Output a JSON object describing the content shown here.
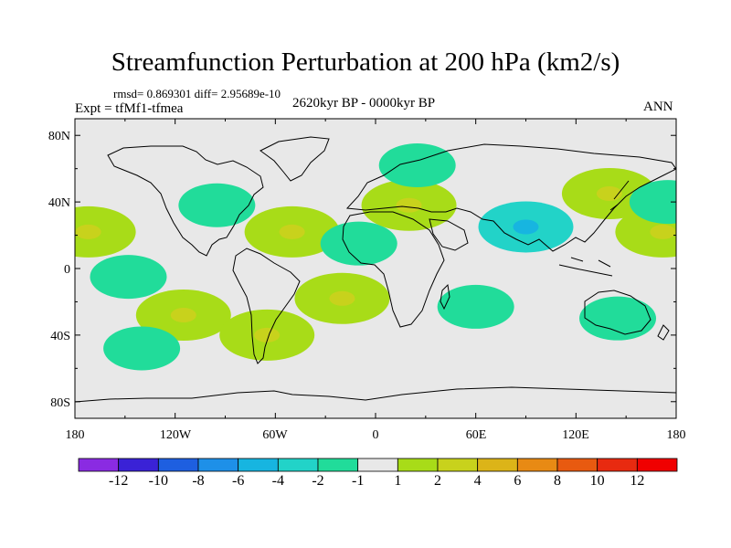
{
  "title": "Streamfunction Perturbation at 200 hPa (km2/s)",
  "stats": "rmsd= 0.869301 diff= 2.95689e-10",
  "experiment": "Expt = tfMf1-tfmea",
  "period": "2620kyr BP - 0000kyr BP",
  "season": "ANN",
  "lat_labels": [
    "80N",
    "40N",
    "0",
    "40S",
    "80S"
  ],
  "lon_labels": [
    "180",
    "120W",
    "60W",
    "0",
    "60E",
    "120E",
    "180"
  ],
  "colorbar": {
    "labels": [
      "-12",
      "-10",
      "-8",
      "-6",
      "-4",
      "-2",
      "-1",
      "1",
      "2",
      "4",
      "6",
      "8",
      "10",
      "12"
    ],
    "colors": [
      "#8a2be2",
      "#3a22d6",
      "#1e5fe0",
      "#1e90e8",
      "#17b5e0",
      "#22d3c8",
      "#21dc9a",
      "#e8e8e8",
      "#a8dc18",
      "#c8d21c",
      "#dcb418",
      "#e88a14",
      "#e85a10",
      "#e82a10",
      "#f00000"
    ]
  },
  "anomalies": [
    {
      "lon": -172,
      "lat": 22,
      "level": 2
    },
    {
      "lon": 172,
      "lat": 22,
      "level": 2
    },
    {
      "lon": -95,
      "lat": 38,
      "level": -1
    },
    {
      "lon": -50,
      "lat": 22,
      "level": 2
    },
    {
      "lon": -10,
      "lat": 15,
      "level": -1
    },
    {
      "lon": 20,
      "lat": 38,
      "level": 2
    },
    {
      "lon": 25,
      "lat": 62,
      "level": -1
    },
    {
      "lon": -20,
      "lat": -18,
      "level": 2
    },
    {
      "lon": 90,
      "lat": 25,
      "level": -2
    },
    {
      "lon": 140,
      "lat": 45,
      "level": 2
    },
    {
      "lon": 175,
      "lat": 40,
      "level": -1
    },
    {
      "lon": -115,
      "lat": -28,
      "level": 2
    },
    {
      "lon": -65,
      "lat": -40,
      "level": 2
    },
    {
      "lon": 60,
      "lat": -23,
      "level": -1
    },
    {
      "lon": 145,
      "lat": -30,
      "level": -1
    },
    {
      "lon": -140,
      "lat": -48,
      "level": -1
    },
    {
      "lon": -148,
      "lat": -5,
      "level": -1
    }
  ]
}
